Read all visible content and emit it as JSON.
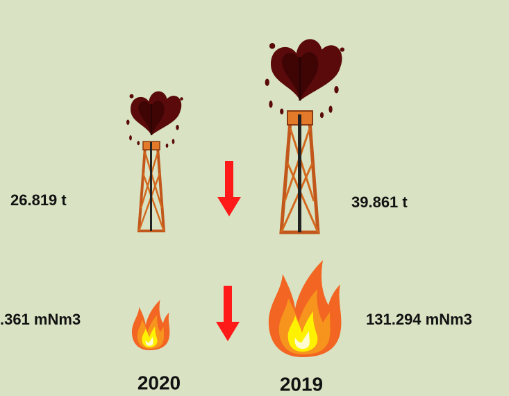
{
  "columns": [
    {
      "year": "2020",
      "oil": "26.819 t",
      "gas": ".361 mNm3"
    },
    {
      "year": "2019",
      "oil": "39.861 t",
      "gas": "131.294 mNm3"
    }
  ]
}
